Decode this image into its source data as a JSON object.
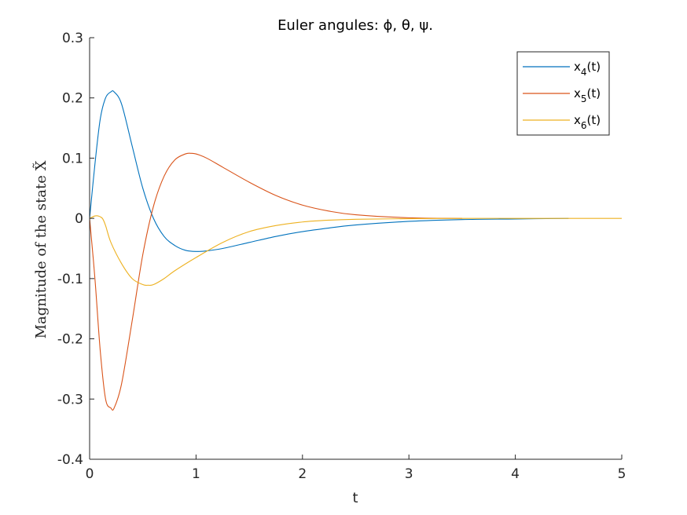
{
  "chart_data": {
    "type": "line",
    "title": "Euler angules: ϕ, θ, ψ.",
    "xlabel": "t",
    "ylabel": "Magnitude of the state X̃",
    "xlim": [
      0,
      5
    ],
    "ylim": [
      -0.4,
      0.3
    ],
    "x_ticks": [
      "0",
      "1",
      "2",
      "3",
      "4",
      "5"
    ],
    "y_ticks": [
      "0.3",
      "0.2",
      "0.1",
      "0",
      "-0.1",
      "-0.2",
      "-0.3",
      "-0.4"
    ],
    "grid": false,
    "legend_position": "top-right",
    "series": [
      {
        "name": "x4(t)",
        "label_base": "x",
        "label_sub": "4",
        "label_tail": "(t)",
        "color": "#0072BD",
        "x": [
          0,
          0.05,
          0.1,
          0.15,
          0.2,
          0.23,
          0.3,
          0.4,
          0.5,
          0.6,
          0.7,
          0.8,
          0.9,
          1.0,
          1.1,
          1.25,
          1.5,
          1.75,
          2.0,
          2.25,
          2.5,
          3.0,
          3.5,
          4.0,
          4.5
        ],
        "y": [
          0,
          0.09,
          0.165,
          0.2,
          0.21,
          0.21,
          0.19,
          0.12,
          0.05,
          0.0,
          -0.03,
          -0.045,
          -0.053,
          -0.055,
          -0.054,
          -0.05,
          -0.04,
          -0.03,
          -0.022,
          -0.016,
          -0.011,
          -0.005,
          -0.002,
          -0.001,
          0
        ]
      },
      {
        "name": "x5(t)",
        "label_base": "x",
        "label_sub": "5",
        "label_tail": "(t)",
        "color": "#D95319",
        "x": [
          0,
          0.05,
          0.1,
          0.15,
          0.2,
          0.23,
          0.3,
          0.4,
          0.5,
          0.6,
          0.7,
          0.8,
          0.9,
          0.95,
          1.0,
          1.1,
          1.25,
          1.5,
          1.75,
          2.0,
          2.25,
          2.5,
          3.0,
          3.5
        ],
        "y": [
          0,
          -0.1,
          -0.22,
          -0.3,
          -0.315,
          -0.315,
          -0.275,
          -0.17,
          -0.06,
          0.02,
          0.07,
          0.097,
          0.107,
          0.108,
          0.107,
          0.1,
          0.085,
          0.06,
          0.038,
          0.022,
          0.012,
          0.006,
          0.001,
          0
        ]
      },
      {
        "name": "x6(t)",
        "label_base": "x",
        "label_sub": "6",
        "label_tail": "(t)",
        "color": "#EDB120",
        "x": [
          0,
          0.05,
          0.08,
          0.12,
          0.15,
          0.2,
          0.3,
          0.4,
          0.5,
          0.55,
          0.6,
          0.7,
          0.8,
          1.0,
          1.25,
          1.5,
          1.75,
          2.0,
          2.25,
          2.5,
          3.0,
          3.5,
          4.0,
          4.5,
          5.0
        ],
        "y": [
          0,
          0.004,
          0.004,
          0.0,
          -0.012,
          -0.04,
          -0.075,
          -0.1,
          -0.11,
          -0.111,
          -0.11,
          -0.1,
          -0.087,
          -0.065,
          -0.04,
          -0.022,
          -0.012,
          -0.006,
          -0.003,
          -0.0015,
          -0.0005,
          0,
          0,
          0,
          0
        ]
      }
    ]
  }
}
